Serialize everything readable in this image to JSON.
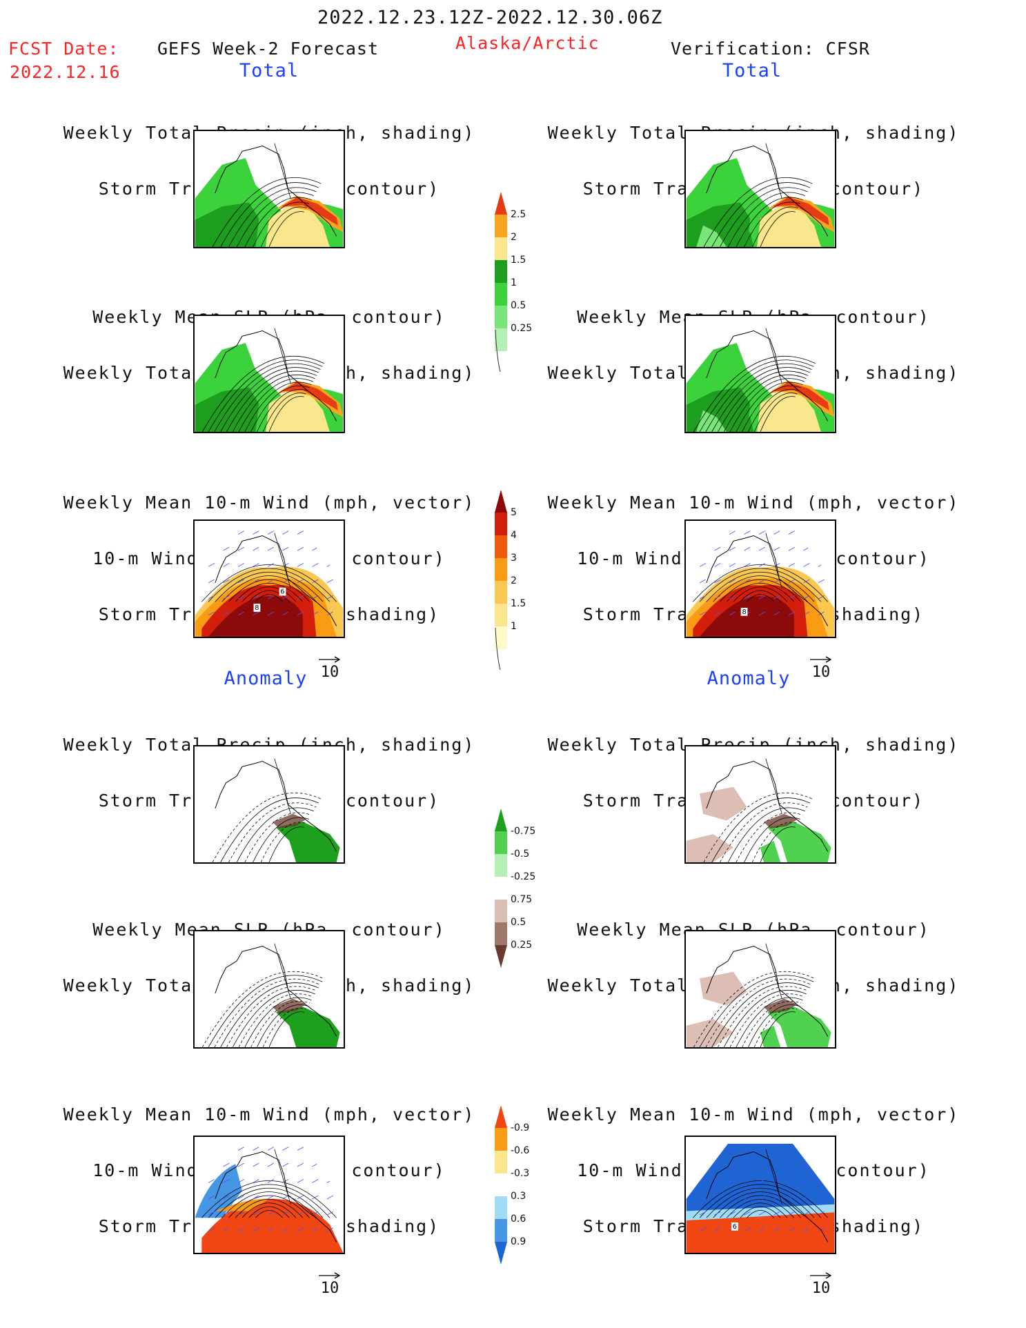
{
  "header": {
    "date_range": "2022.12.23.12Z-2022.12.30.06Z",
    "fcst_label": "FCST Date:",
    "fcst_date": "2022.12.16",
    "forecast_title": "GEFS Week-2 Forecast",
    "region": "Alaska/Arctic",
    "verification": "Verification: CFSR"
  },
  "sections": {
    "total_left": "Total",
    "total_right": "Total",
    "anomaly_left": "Anomaly",
    "anomaly_right": "Anomaly"
  },
  "captions": {
    "precip_storm_1": "Weekly Total Precip (inch, shading)",
    "precip_storm_2": "Storm Track Density (contour)",
    "slp_precip_1": "Weekly Mean SLP (hPa, contour)",
    "slp_precip_2": "Weekly Total Precip (inch, shading)",
    "wind_1": "Weekly Mean 10-m Wind (mph, vector)",
    "wind_2": "10-m Wind Speed (mph, contour)",
    "wind_3": "Storm Track Density (shading)"
  },
  "wind_reference": "10",
  "map_labels": {
    "fcst_wind_total": [
      "6",
      "8"
    ],
    "cfsr_wind_total": [
      "8"
    ],
    "cfsr_wind_anom": [
      "6"
    ]
  },
  "colorbars": {
    "precip_total": {
      "ticks": [
        "0.25",
        "0.5",
        "1",
        "1.5",
        "2",
        "2.5"
      ],
      "colors": [
        "#b4f0b4",
        "#78e678",
        "#3cd23c",
        "#1e9e1e",
        "#fae68c",
        "#faa51e",
        "#e63c14"
      ]
    },
    "storm_total": {
      "ticks": [
        "1",
        "1.5",
        "2",
        "3",
        "4",
        "5"
      ],
      "colors": [
        "#fffac8",
        "#fae68c",
        "#fac850",
        "#fa9b14",
        "#f05a0a",
        "#d21e0a",
        "#8c0a0a"
      ]
    },
    "precip_anom": {
      "ticks": [
        "0.25",
        "0.5",
        "0.75",
        "-0.25",
        "-0.5",
        "-0.75"
      ],
      "colors": [
        "#6b3a2e",
        "#a0786a",
        "#dcbeb4",
        "#ffffff",
        "#b4f0b4",
        "#50d250",
        "#1ea01e"
      ]
    },
    "storm_anom": {
      "ticks": [
        "0.9",
        "0.6",
        "0.3",
        "-0.3",
        "-0.6",
        "-0.9"
      ],
      "colors": [
        "#1e64d2",
        "#4696e6",
        "#a0dcf5",
        "#ffffff",
        "#fae68c",
        "#fa9b14",
        "#f04614"
      ]
    }
  }
}
